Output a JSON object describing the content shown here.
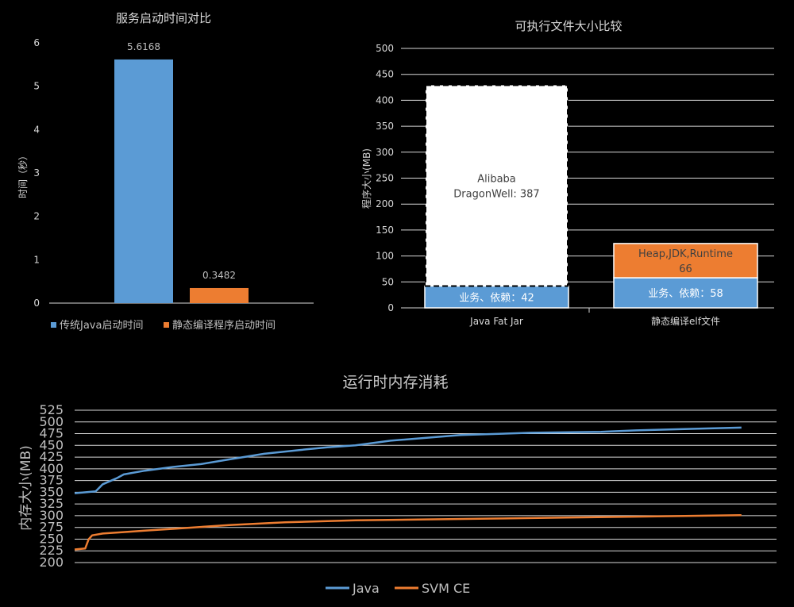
{
  "chart_data": [
    {
      "type": "bar",
      "title": "服务启动时间对比",
      "ylabel": "时间（秒）",
      "xlabel": "",
      "ylim": [
        0,
        6
      ],
      "yticks": [
        "0",
        "1",
        "2",
        "3",
        "4",
        "5",
        "6"
      ],
      "grid": false,
      "legend_position": "bottom",
      "series": [
        {
          "name": "传统Java启动时间",
          "values": [
            5.6168
          ],
          "label": "5.6168",
          "color": "#5b9bd5"
        },
        {
          "name": "静态编译程序启动时间",
          "values": [
            0.3482
          ],
          "label": "0.3482",
          "color": "#ed7d31"
        }
      ]
    },
    {
      "type": "bar",
      "stacked": true,
      "title": "可执行文件大小比较",
      "ylabel": "程序大小(MB)",
      "xlabel": "",
      "ylim": [
        0,
        500
      ],
      "yticks": [
        "0",
        "50",
        "100",
        "150",
        "200",
        "250",
        "300",
        "350",
        "400",
        "450",
        "500"
      ],
      "grid": true,
      "categories": [
        "Java Fat Jar",
        "静态编译elf文件"
      ],
      "stacks": [
        [
          {
            "label_lines": [
              "业务、依赖：42"
            ],
            "value": 42,
            "fill": "#5b9bd5",
            "text_color": "#ffffff"
          },
          {
            "label_lines": [
              "Alibaba",
              "DragonWell: 387"
            ],
            "value": 387,
            "fill": "#ffffff",
            "text_color": "#404040",
            "dashed": true
          }
        ],
        [
          {
            "label_lines": [
              "业务、依赖：58"
            ],
            "value": 58,
            "fill": "#5b9bd5",
            "text_color": "#ffffff"
          },
          {
            "label_lines": [
              "Heap,JDK,Runtime",
              "66"
            ],
            "value": 66,
            "fill": "#ed7d31",
            "text_color": "#404040"
          }
        ]
      ]
    },
    {
      "type": "line",
      "title": "运行时内存消耗",
      "ylabel": "内存大小(MB)",
      "xlabel": "",
      "ylim": [
        200,
        525
      ],
      "yticks": [
        "200",
        "225",
        "250",
        "275",
        "300",
        "325",
        "350",
        "375",
        "400",
        "425",
        "450",
        "475",
        "500",
        "525"
      ],
      "grid": true,
      "legend_position": "bottom",
      "series": [
        {
          "name": "Java",
          "color": "#5b9bd5",
          "x": [
            0,
            3,
            4,
            6,
            7,
            10,
            14,
            18,
            22,
            27,
            32,
            36,
            40,
            45,
            55,
            65,
            75,
            80,
            90,
            95
          ],
          "values": [
            348,
            352,
            367,
            380,
            388,
            396,
            404,
            410,
            420,
            432,
            440,
            446,
            450,
            460,
            472,
            477,
            479,
            482,
            486,
            488
          ]
        },
        {
          "name": "SVM CE",
          "color": "#ed7d31",
          "x": [
            0,
            1.5,
            2,
            2.5,
            4,
            8,
            10,
            14,
            18,
            22,
            26,
            30,
            35,
            40,
            50,
            60,
            70,
            80,
            90,
            95
          ],
          "values": [
            228,
            230,
            250,
            258,
            262,
            266,
            268,
            272,
            276,
            280,
            283,
            286,
            288,
            290,
            292,
            294,
            296,
            298,
            300,
            301
          ]
        }
      ]
    }
  ]
}
